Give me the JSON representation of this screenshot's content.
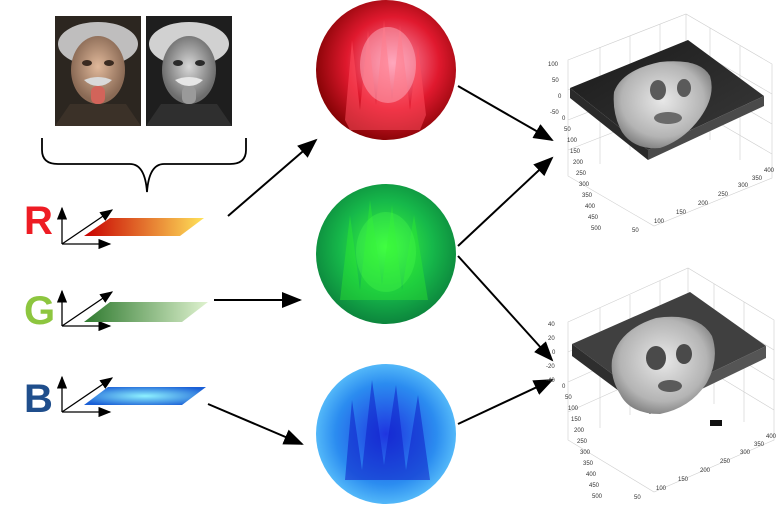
{
  "channels": [
    {
      "letter": "R",
      "color": "#ee1c24",
      "plane_start": "#c80000",
      "plane_end": "#ffe35a",
      "sphere_dark": "#7a0000",
      "sphere_light": "#ff9ab4"
    },
    {
      "letter": "G",
      "color": "#8dc63f",
      "plane_start": "#2f7a2f",
      "plane_end": "#dff2cf",
      "sphere_dark": "#0a7a3a",
      "sphere_light": "#3cff3c"
    },
    {
      "letter": "B",
      "color": "#1f4e8c",
      "plane_start": "#1a5fd6",
      "plane_end": "#8ef2ff",
      "sphere_dark": "#0b1fb5",
      "sphere_light": "#6fd7ff"
    }
  ],
  "photos": [
    {
      "name": "color-portrait",
      "tone": "color"
    },
    {
      "name": "grayscale-portrait",
      "tone": "grayscale"
    }
  ],
  "surface_plots": [
    {
      "name": "surface-plot-top",
      "z_ticks": [
        "100",
        "50",
        "0",
        "-50"
      ],
      "y_ticks": [
        "0",
        "50",
        "100",
        "150",
        "200",
        "250",
        "300",
        "350",
        "400",
        "450",
        "500"
      ],
      "x_ticks": [
        "50",
        "100",
        "150",
        "200",
        "250",
        "300",
        "350",
        "400"
      ]
    },
    {
      "name": "surface-plot-bottom",
      "z_ticks": [
        "40",
        "20",
        "0",
        "-20",
        "-40"
      ],
      "y_ticks": [
        "0",
        "50",
        "100",
        "150",
        "200",
        "250",
        "300",
        "350",
        "400",
        "450",
        "500"
      ],
      "x_ticks": [
        "50",
        "100",
        "150",
        "200",
        "250",
        "300",
        "350",
        "400"
      ]
    }
  ]
}
